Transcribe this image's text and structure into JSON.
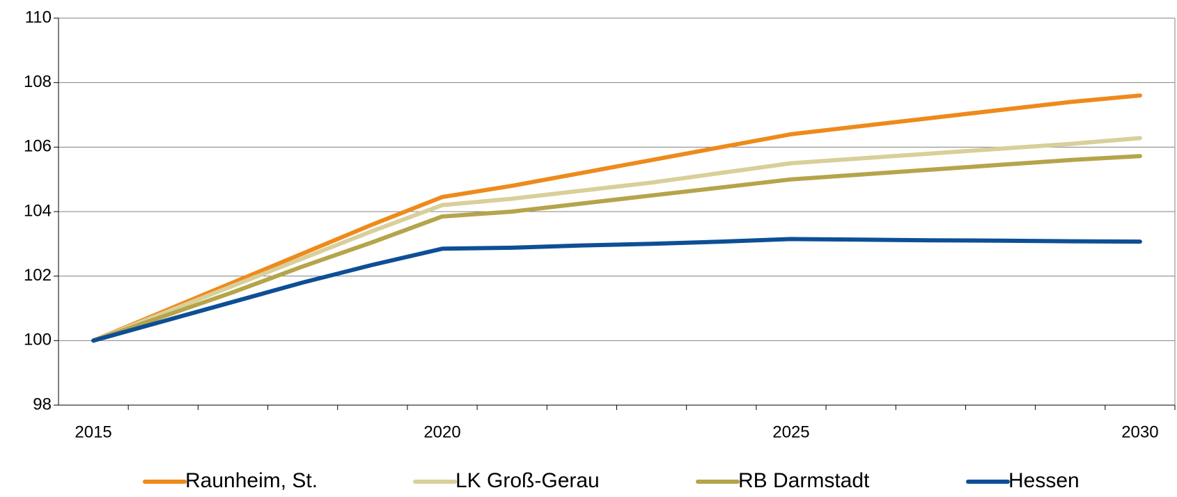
{
  "chart_data": {
    "type": "line",
    "x": [
      2015,
      2016,
      2017,
      2018,
      2019,
      2020,
      2021,
      2022,
      2023,
      2024,
      2025,
      2026,
      2027,
      2028,
      2029,
      2030
    ],
    "series": [
      {
        "name": "Raunheim, St.",
        "color": "#ee8a1c",
        "values": [
          100,
          100.9,
          101.8,
          102.7,
          103.6,
          104.45,
          104.8,
          105.2,
          105.6,
          106.0,
          106.4,
          106.65,
          106.9,
          107.15,
          107.4,
          107.6
        ]
      },
      {
        "name": "LK Groß-Gerau",
        "color": "#d8cf9a",
        "values": [
          100,
          100.85,
          101.7,
          102.55,
          103.4,
          104.2,
          104.4,
          104.65,
          104.9,
          105.2,
          105.5,
          105.65,
          105.8,
          105.95,
          106.1,
          106.28
        ]
      },
      {
        "name": "RB Darmstadt",
        "color": "#b5a44a",
        "values": [
          100,
          100.75,
          101.5,
          102.3,
          103.05,
          103.85,
          104.0,
          104.25,
          104.5,
          104.75,
          105.0,
          105.15,
          105.3,
          105.45,
          105.6,
          105.72
        ]
      },
      {
        "name": "Hessen",
        "color": "#0d4f96",
        "values": [
          100,
          100.6,
          101.2,
          101.8,
          102.35,
          102.85,
          102.88,
          102.95,
          103.0,
          103.07,
          103.15,
          103.13,
          103.11,
          103.1,
          103.08,
          103.07
        ]
      }
    ],
    "xlim": [
      2014.5,
      2030.5
    ],
    "xticks": [
      2015,
      2020,
      2025,
      2030
    ],
    "ylim": [
      98,
      110
    ],
    "yticks": [
      98,
      100,
      102,
      104,
      106,
      108,
      110
    ],
    "grid": true,
    "legend": "bottom"
  }
}
